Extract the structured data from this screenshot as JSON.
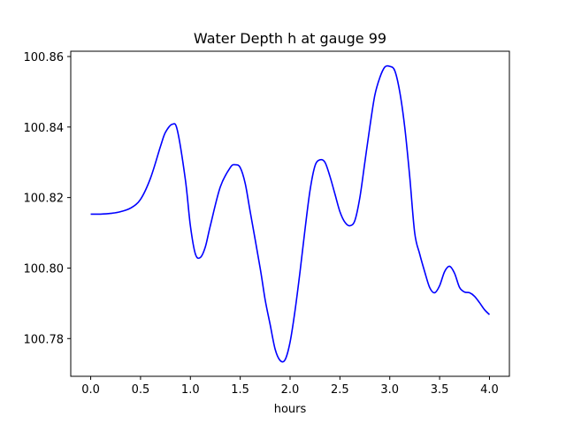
{
  "chart_data": {
    "type": "line",
    "title": "Water Depth h at gauge 99",
    "xlabel": "hours",
    "ylabel": "",
    "xlim": [
      -0.2,
      4.2
    ],
    "ylim": [
      100.7693,
      100.8615
    ],
    "xticks": [
      0.0,
      0.5,
      1.0,
      1.5,
      2.0,
      2.5,
      3.0,
      3.5,
      4.0
    ],
    "xtick_labels": [
      "0.0",
      "0.5",
      "1.0",
      "1.5",
      "2.0",
      "2.5",
      "3.0",
      "3.5",
      "4.0"
    ],
    "yticks": [
      100.78,
      100.8,
      100.82,
      100.84,
      100.86
    ],
    "ytick_labels": [
      "100.78",
      "100.80",
      "100.82",
      "100.84",
      "100.86"
    ],
    "grid": false,
    "series": [
      {
        "color": "#0000ff",
        "x": [
          0.0,
          0.1,
          0.2,
          0.3,
          0.4,
          0.5,
          0.6,
          0.7,
          0.75,
          0.82,
          0.87,
          0.95,
          1.0,
          1.05,
          1.1,
          1.15,
          1.2,
          1.3,
          1.4,
          1.45,
          1.5,
          1.55,
          1.6,
          1.7,
          1.75,
          1.8,
          1.85,
          1.9,
          1.95,
          2.0,
          2.05,
          2.1,
          2.15,
          2.2,
          2.25,
          2.3,
          2.35,
          2.4,
          2.45,
          2.5,
          2.55,
          2.6,
          2.65,
          2.7,
          2.75,
          2.8,
          2.85,
          2.9,
          2.95,
          3.0,
          3.05,
          3.1,
          3.15,
          3.2,
          3.25,
          3.3,
          3.35,
          3.4,
          3.45,
          3.5,
          3.55,
          3.6,
          3.65,
          3.7,
          3.75,
          3.8,
          3.85,
          3.9,
          3.95,
          4.0
        ],
        "y": [
          100.8153,
          100.8153,
          100.8155,
          100.816,
          100.817,
          100.8195,
          100.8255,
          100.8345,
          100.8385,
          100.8408,
          100.839,
          100.825,
          100.812,
          100.804,
          100.803,
          100.806,
          100.812,
          100.823,
          100.8285,
          100.8293,
          100.8285,
          100.824,
          100.816,
          100.8,
          100.791,
          100.784,
          100.777,
          100.7738,
          100.774,
          100.779,
          100.788,
          100.799,
          100.811,
          100.822,
          100.829,
          100.8307,
          100.83,
          100.826,
          100.821,
          100.816,
          100.813,
          100.812,
          100.8135,
          100.82,
          100.83,
          100.84,
          100.849,
          100.854,
          100.857,
          100.8572,
          100.856,
          100.85,
          100.84,
          100.826,
          100.81,
          100.804,
          100.799,
          100.7945,
          100.793,
          100.795,
          100.799,
          100.8005,
          100.7985,
          100.7945,
          100.7932,
          100.793,
          100.792,
          100.7902,
          100.7882,
          100.7868
        ]
      }
    ]
  }
}
